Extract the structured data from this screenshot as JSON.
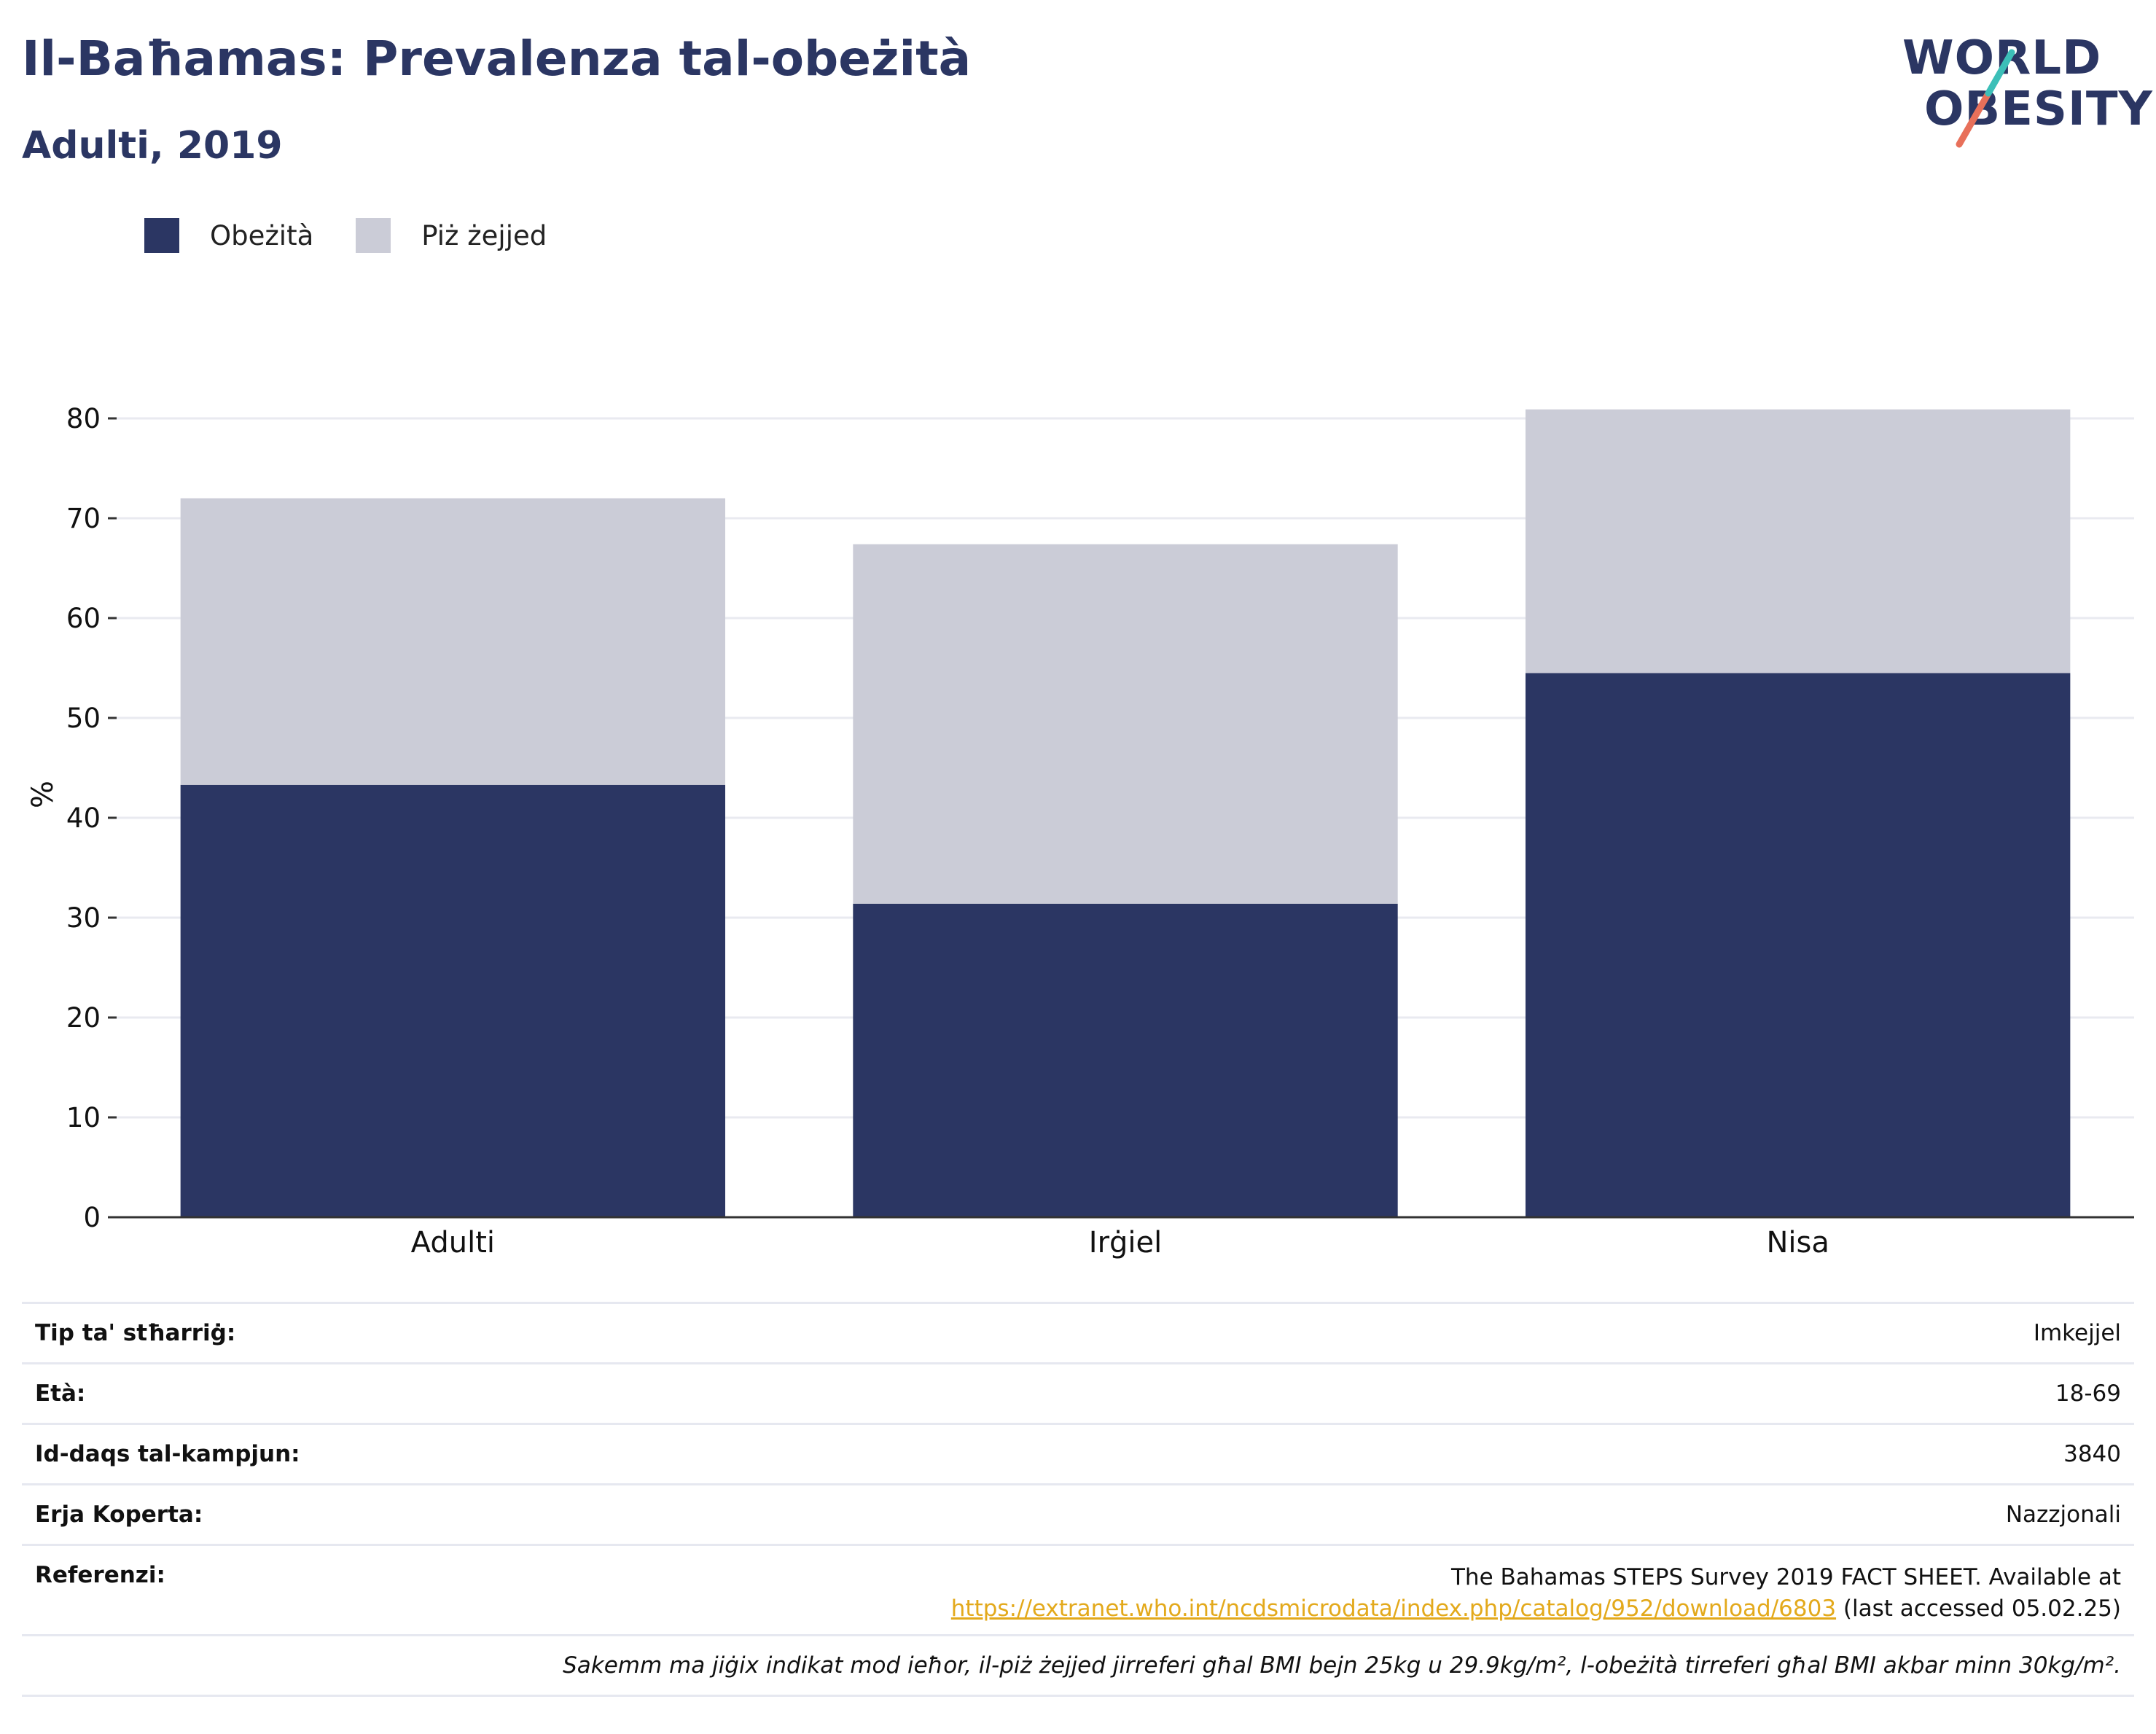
{
  "header": {
    "title": "Il-Baħamas: Prevalenza tal-obeżità",
    "subtitle": "Adulti, 2019"
  },
  "logo": {
    "line1": "WORLD",
    "line2": "OBESITY",
    "colors": {
      "text": "#2b3663",
      "slash_top": "#3cbfb8",
      "slash_bottom": "#e8705a"
    }
  },
  "legend": {
    "items": [
      {
        "label": "Obeżità",
        "color": "#2b3663"
      },
      {
        "label": "Piż żejjed",
        "color": "#cbccd7"
      }
    ]
  },
  "chart_data": {
    "type": "bar",
    "stacked": true,
    "categories": [
      "Adulti",
      "Irġiel",
      "Nisa"
    ],
    "series": [
      {
        "name": "Obeżità",
        "color": "#2b3663",
        "values": [
          43.3,
          31.4,
          54.5
        ]
      },
      {
        "name": "Piż żejjed",
        "color": "#cbccd7",
        "values": [
          28.7,
          36.0,
          26.4
        ]
      }
    ],
    "ylabel": "%",
    "xlabel": "",
    "ylim": [
      0,
      85
    ],
    "yticks": [
      0,
      10,
      20,
      30,
      40,
      50,
      60,
      70,
      80
    ],
    "grid": true,
    "legend_position": "top-left"
  },
  "info": {
    "rows": [
      {
        "key": "Tip ta' stħarriġ:",
        "value": "Imkejjel"
      },
      {
        "key": "Età:",
        "value": "18-69"
      },
      {
        "key": "Id-daqs tal-kampjun:",
        "value": "3840"
      },
      {
        "key": "Erja Koperta:",
        "value": "Nazzjonali"
      }
    ],
    "reference": {
      "key": "Referenzi:",
      "line1": "The Bahamas STEPS Survey 2019 FACT SHEET. Available at",
      "link": "https://extranet.who.int/ncdsmicrodata/index.php/catalog/952/download/6803",
      "suffix": " (last accessed 05.02.25)"
    },
    "note": "Sakemm ma jiġix indikat mod ieħor, il-piż żejjed jirreferi għal BMI bejn 25kg u 29.9kg/m², l-obeżità tirreferi għal BMI akbar minn 30kg/m²."
  }
}
